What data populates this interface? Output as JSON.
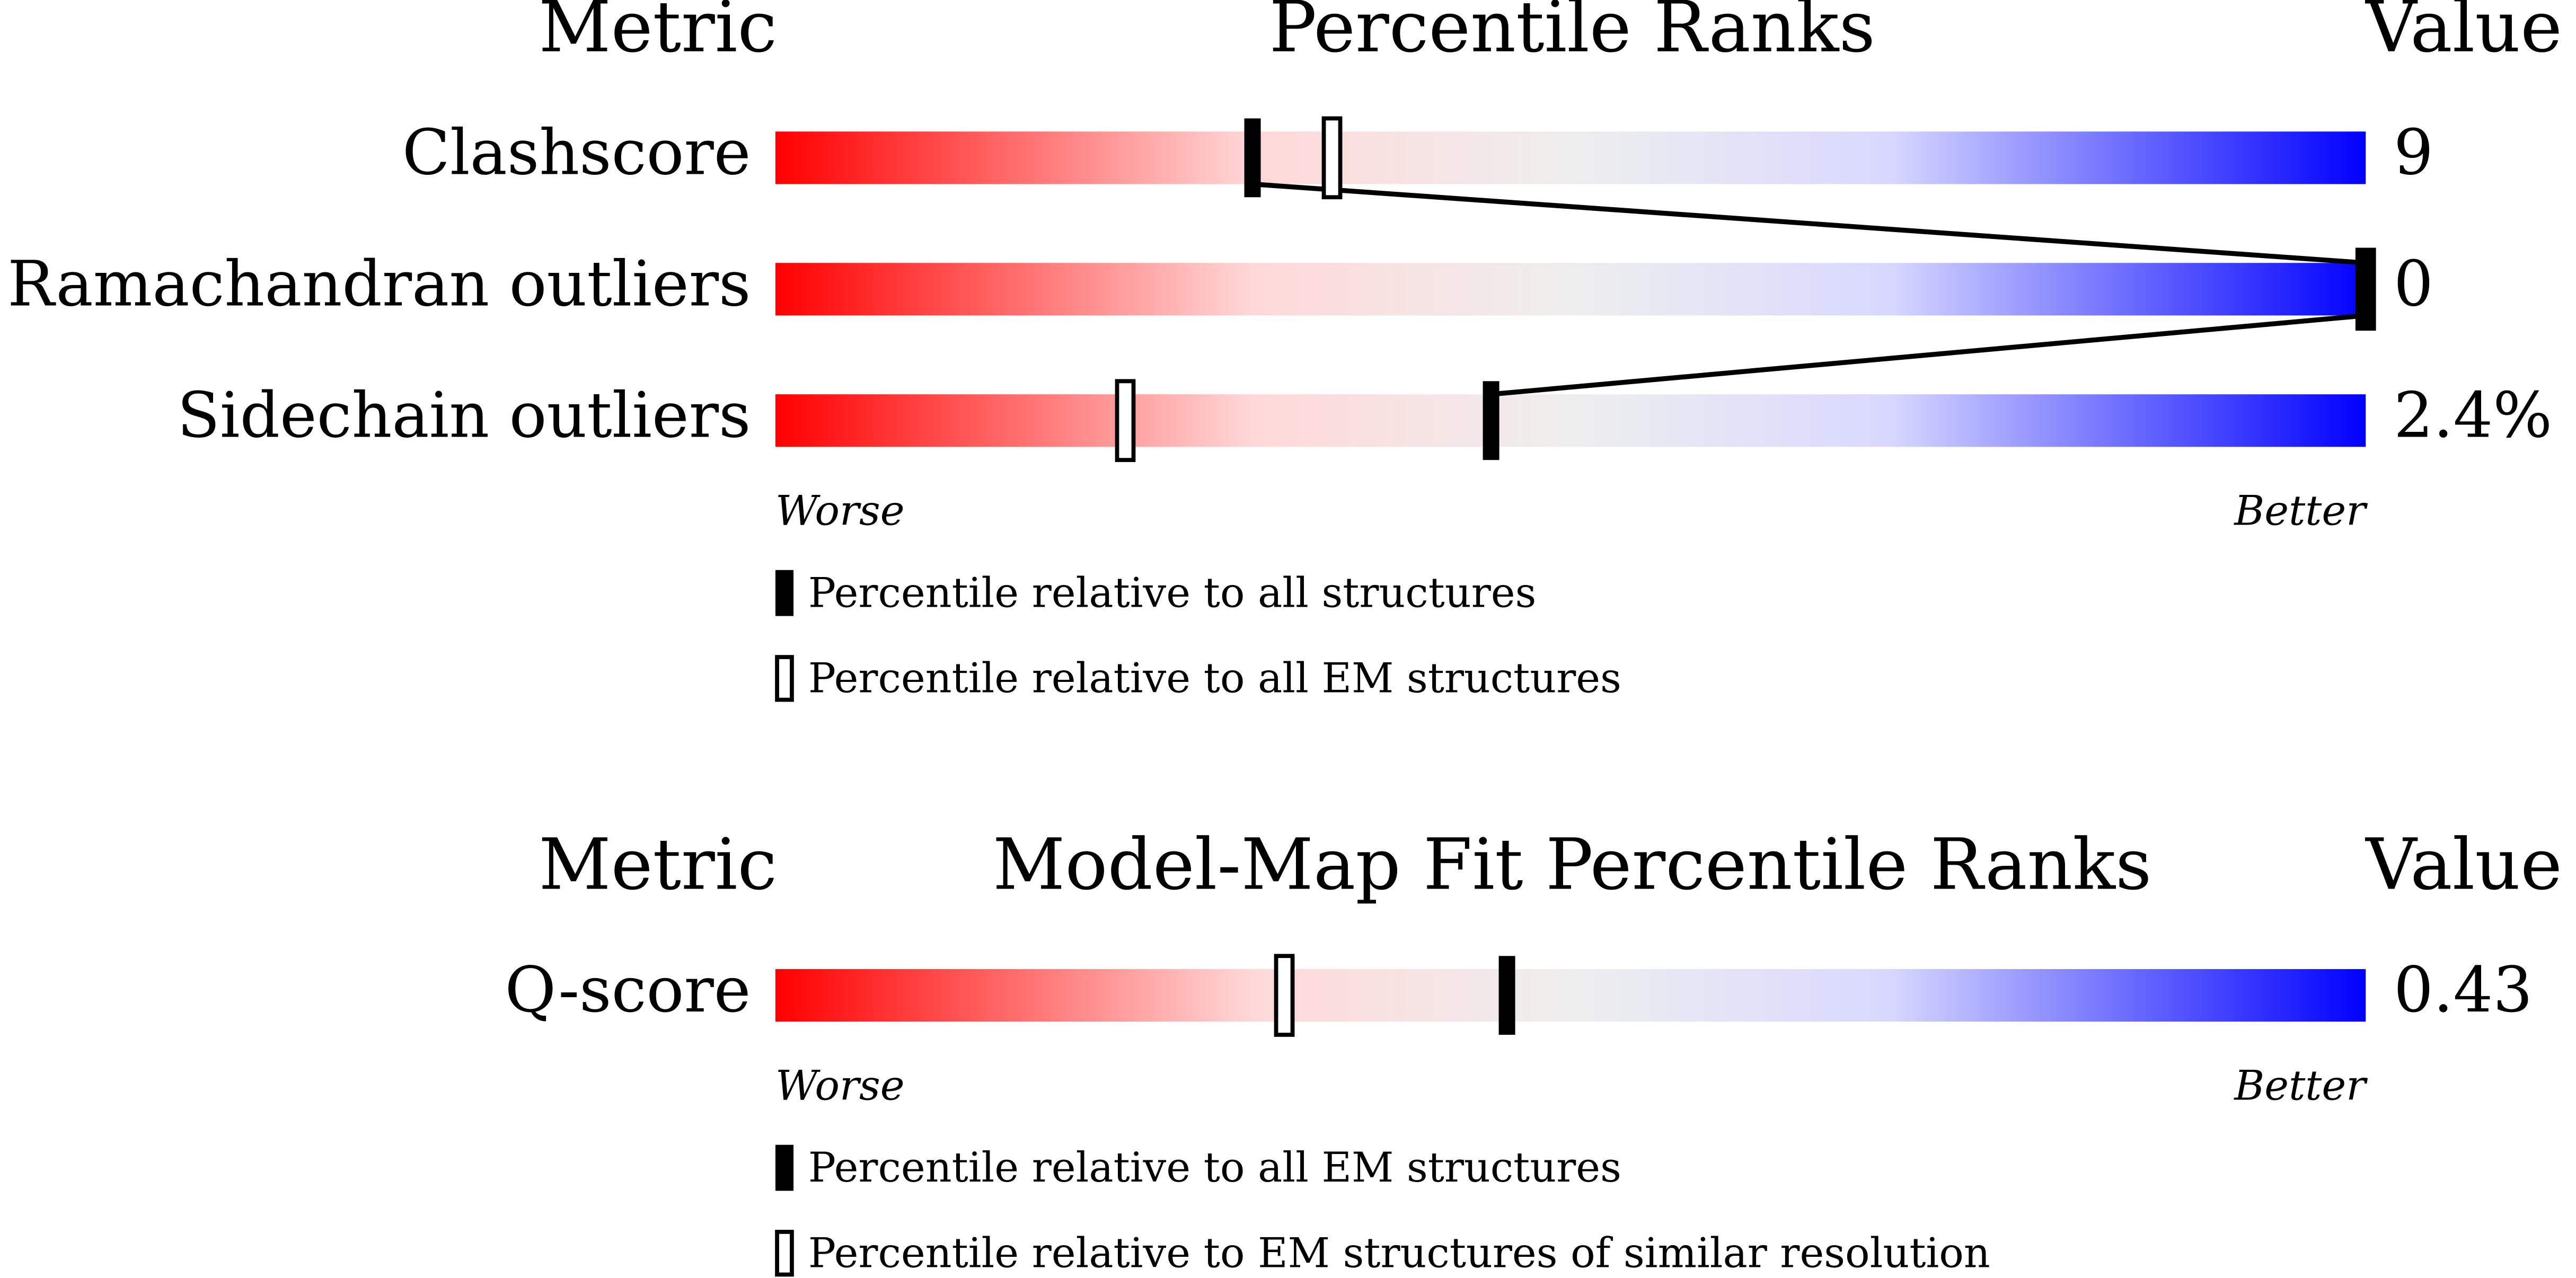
{
  "panels": [
    {
      "header": {
        "metric": "Metric",
        "title": "Percentile Ranks",
        "value": "Value"
      },
      "xlim": [
        0,
        100
      ],
      "rows": [
        {
          "metric": "Clashscore",
          "value": "9",
          "rank_filled": 30,
          "rank_open": 35
        },
        {
          "metric": "Ramachandran outliers",
          "value": "0",
          "rank_filled": 100,
          "rank_open": 100
        },
        {
          "metric": "Sidechain outliers",
          "value": "2.4%",
          "rank_filled": 45,
          "rank_open": 22
        }
      ],
      "scale_labels": {
        "worse": "Worse",
        "better": "Better"
      },
      "legend": [
        {
          "marker": "filled",
          "label": "Percentile relative to all structures"
        },
        {
          "marker": "open",
          "label": "Percentile relative to all EM structures"
        }
      ]
    },
    {
      "header": {
        "metric": "Metric",
        "title": "Model-Map Fit Percentile Ranks",
        "value": "Value"
      },
      "xlim": [
        0,
        100
      ],
      "rows": [
        {
          "metric": "Q-score",
          "value": "0.43",
          "rank_filled": 46,
          "rank_open": 32
        }
      ],
      "scale_labels": {
        "worse": "Worse",
        "better": "Better"
      },
      "legend": [
        {
          "marker": "filled",
          "label": "Percentile relative to all EM structures"
        },
        {
          "marker": "open",
          "label": "Percentile relative to EM structures of similar resolution"
        }
      ]
    }
  ]
}
